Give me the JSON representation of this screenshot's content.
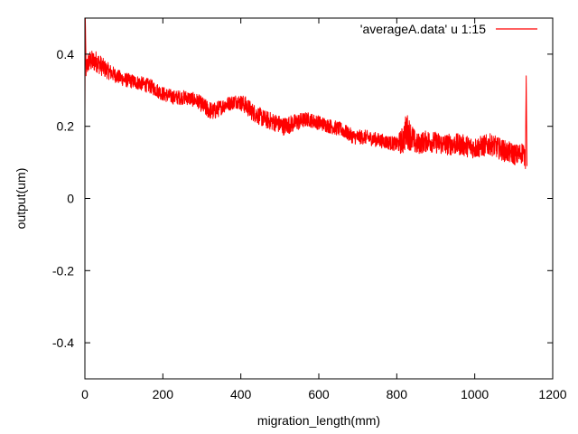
{
  "chart_data": {
    "type": "line",
    "title": "",
    "xlabel": "migration_length(mm)",
    "ylabel": "output(um)",
    "xlim": [
      0,
      1200
    ],
    "ylim": [
      -0.5,
      0.5
    ],
    "x_ticks": [
      0,
      200,
      400,
      600,
      800,
      1000,
      1200
    ],
    "x_tick_labels": [
      "0",
      "200",
      "400",
      "600",
      "800",
      "1000",
      "1200"
    ],
    "y_ticks": [
      -0.4,
      -0.2,
      0,
      0.2,
      0.4
    ],
    "y_tick_labels": [
      "-0.4",
      "-0.2",
      "0",
      "0.2",
      "0.4"
    ],
    "grid": false,
    "legend_position": "top-right",
    "series": [
      {
        "name": "'averageA.data' u 1:15",
        "color": "#ff0000",
        "x": [
          0,
          1,
          3,
          10,
          30,
          50,
          80,
          100,
          140,
          170,
          200,
          230,
          260,
          290,
          310,
          330,
          360,
          390,
          410,
          430,
          460,
          490,
          510,
          540,
          570,
          600,
          630,
          660,
          690,
          720,
          760,
          800,
          815,
          825,
          850,
          880,
          920,
          960,
          1000,
          1040,
          1080,
          1110,
          1125,
          1130,
          1132,
          1134
        ],
        "y": [
          0.24,
          0.5,
          0.36,
          0.38,
          0.38,
          0.36,
          0.34,
          0.33,
          0.32,
          0.31,
          0.29,
          0.28,
          0.28,
          0.27,
          0.25,
          0.24,
          0.26,
          0.27,
          0.26,
          0.24,
          0.22,
          0.21,
          0.2,
          0.21,
          0.22,
          0.21,
          0.2,
          0.19,
          0.17,
          0.17,
          0.16,
          0.15,
          0.16,
          0.19,
          0.15,
          0.16,
          0.15,
          0.15,
          0.14,
          0.15,
          0.13,
          0.12,
          0.13,
          0.1,
          0.34,
          0.09
        ],
        "noise": [
          0.02,
          0.0,
          0.03,
          0.03,
          0.03,
          0.025,
          0.02,
          0.02,
          0.02,
          0.02,
          0.02,
          0.02,
          0.02,
          0.02,
          0.025,
          0.025,
          0.02,
          0.02,
          0.025,
          0.025,
          0.025,
          0.025,
          0.025,
          0.025,
          0.02,
          0.02,
          0.02,
          0.02,
          0.02,
          0.02,
          0.02,
          0.02,
          0.04,
          0.05,
          0.03,
          0.03,
          0.03,
          0.03,
          0.03,
          0.03,
          0.03,
          0.03,
          0.03,
          0.02,
          0.0,
          0.0
        ]
      }
    ]
  }
}
